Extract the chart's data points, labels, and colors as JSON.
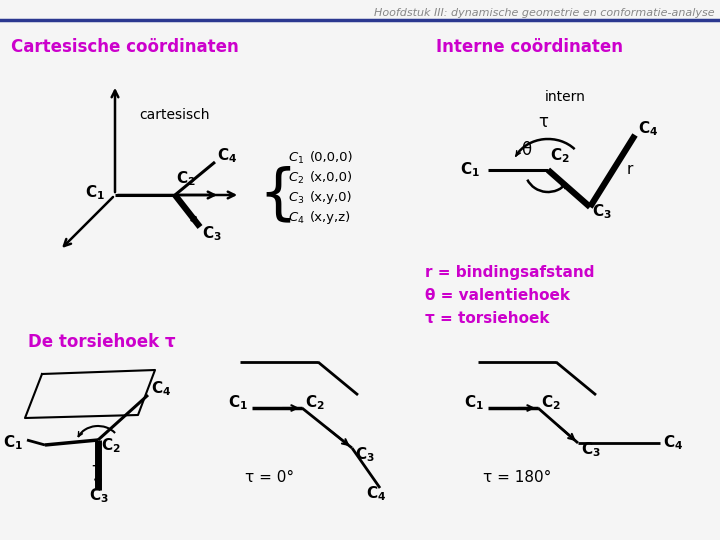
{
  "title": "Hoofdstuk III: dynamische geometrie en conformatie-analyse",
  "title_color": "#888888",
  "header_line_color": "#2B3890",
  "bg_color": "#F5F5F5",
  "purple_color": "#CC00CC",
  "black_color": "#000000",
  "section1_title": "Cartesische coördinaten",
  "section2_title": "Interne coördinaten",
  "section3_title": "De torsiehoek τ",
  "coord_label": "cartesisch",
  "intern_label": "intern",
  "r_def": "r = bindingsafstand",
  "theta_def": "θ = valentiehoek",
  "tau_def": "τ = torsiehoek",
  "coord_list": [
    "(0,0,0)",
    "(x,0,0)",
    "(x,y,0)",
    "(x,y,z)"
  ],
  "tau0_label": "τ = 0°",
  "tau180_label": "τ = 180°"
}
